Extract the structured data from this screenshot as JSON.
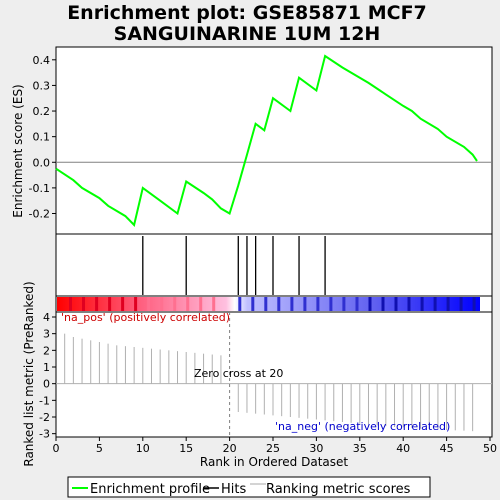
{
  "chart_data": {
    "type": "line",
    "title_line1": "Enrichment plot: GSE85871 MCF7",
    "title_line2": "SANGUINARINE 1UM 12H",
    "xlabel": "Rank in Ordered Dataset",
    "ylabel_top": "Enrichment score (ES)",
    "ylabel_bottom": "Ranked list metric (PreRanked)",
    "xlim": [
      0,
      50
    ],
    "ylim_top": [
      -0.28,
      0.45
    ],
    "ylim_bottom": [
      -3.2,
      4.3
    ],
    "x_ticks": [
      0,
      5,
      10,
      15,
      20,
      25,
      30,
      35,
      40,
      45,
      50
    ],
    "y_ticks_top": [
      -0.2,
      -0.1,
      0.0,
      0.1,
      0.2,
      0.3,
      0.4
    ],
    "y_tick_labels_top": [
      "-0.2",
      "-0.1",
      "0.0",
      "0.1",
      "0.2",
      "0.3",
      "0.4"
    ],
    "y_ticks_bottom": [
      -3,
      -2,
      -1,
      0,
      1,
      2,
      3,
      4
    ],
    "es_color": "#00ff00",
    "es_points": [
      [
        0,
        -0.025
      ],
      [
        2,
        -0.07
      ],
      [
        3,
        -0.1
      ],
      [
        5,
        -0.14
      ],
      [
        6,
        -0.17
      ],
      [
        8,
        -0.21
      ],
      [
        9,
        -0.245
      ],
      [
        10,
        -0.1
      ],
      [
        12,
        -0.15
      ],
      [
        14,
        -0.2
      ],
      [
        15,
        -0.075
      ],
      [
        17,
        -0.12
      ],
      [
        18,
        -0.145
      ],
      [
        19,
        -0.18
      ],
      [
        20,
        -0.2
      ],
      [
        21,
        -0.09
      ],
      [
        22,
        0.03
      ],
      [
        23,
        0.15
      ],
      [
        24,
        0.125
      ],
      [
        25,
        0.25
      ],
      [
        27,
        0.2
      ],
      [
        28,
        0.33
      ],
      [
        30,
        0.28
      ],
      [
        31,
        0.415
      ],
      [
        33,
        0.37
      ],
      [
        35,
        0.33
      ],
      [
        36,
        0.31
      ],
      [
        38,
        0.265
      ],
      [
        40,
        0.22
      ],
      [
        41,
        0.2
      ],
      [
        42,
        0.17
      ],
      [
        44,
        0.13
      ],
      [
        45,
        0.1
      ],
      [
        47,
        0.06
      ],
      [
        48,
        0.03
      ],
      [
        48.5,
        0.005
      ]
    ],
    "hits": [
      10,
      15,
      21,
      22,
      23,
      25,
      28,
      31
    ],
    "metric_bars": [
      [
        1,
        3.0
      ],
      [
        2,
        2.8
      ],
      [
        3,
        2.7
      ],
      [
        4,
        2.6
      ],
      [
        5,
        2.5
      ],
      [
        6,
        2.4
      ],
      [
        7,
        2.3
      ],
      [
        8,
        2.25
      ],
      [
        9,
        2.2
      ],
      [
        10,
        2.15
      ],
      [
        11,
        2.1
      ],
      [
        12,
        2.05
      ],
      [
        13,
        2.0
      ],
      [
        14,
        1.95
      ],
      [
        15,
        1.9
      ],
      [
        16,
        1.85
      ],
      [
        17,
        1.8
      ],
      [
        18,
        1.75
      ],
      [
        19,
        1.7
      ],
      [
        21,
        -1.7
      ],
      [
        22,
        -1.75
      ],
      [
        23,
        -1.8
      ],
      [
        24,
        -1.85
      ],
      [
        25,
        -1.9
      ],
      [
        26,
        -1.95
      ],
      [
        27,
        -2.0
      ],
      [
        28,
        -2.05
      ],
      [
        29,
        -2.1
      ],
      [
        30,
        -2.15
      ],
      [
        31,
        -2.2
      ],
      [
        32,
        -2.25
      ],
      [
        33,
        -2.3
      ],
      [
        34,
        -2.35
      ],
      [
        35,
        -2.4
      ],
      [
        36,
        -2.45
      ],
      [
        37,
        -2.5
      ],
      [
        38,
        -2.55
      ],
      [
        39,
        -2.6
      ],
      [
        40,
        -2.62
      ],
      [
        41,
        -2.65
      ],
      [
        42,
        -2.7
      ],
      [
        43,
        -2.72
      ],
      [
        44,
        -2.75
      ],
      [
        45,
        -2.78
      ],
      [
        46,
        -2.8
      ],
      [
        47,
        -2.82
      ],
      [
        48,
        -2.85
      ]
    ],
    "zero_cross_x": 20,
    "zero_cross_label": "Zero cross at 20",
    "pos_label": "'na_pos' (positively correlated)",
    "neg_label": "'na_neg' (negatively correlated)",
    "pos_label_color": "#cc0000",
    "neg_label_color": "#0000cc",
    "legend": [
      "Enrichment profile",
      "Hits",
      "Ranking metric scores"
    ]
  }
}
